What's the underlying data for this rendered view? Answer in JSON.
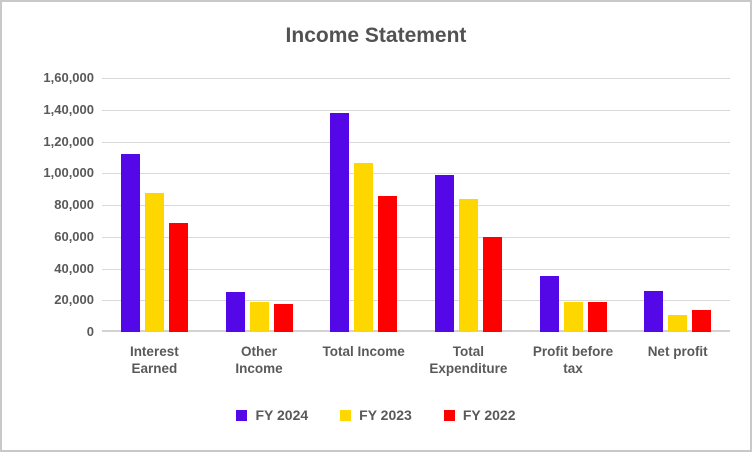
{
  "chart_data": {
    "type": "bar",
    "title": "Income Statement",
    "categories": [
      "Interest Earned",
      "Other Income",
      "Total Income",
      "Total Expenditure",
      "Profit before tax",
      "Net profit"
    ],
    "category_lines": [
      [
        "Interest",
        "Earned"
      ],
      [
        "Other",
        "Income"
      ],
      [
        "Total Income"
      ],
      [
        "Total",
        "Expenditure"
      ],
      [
        "Profit before",
        "tax"
      ],
      [
        "Net profit"
      ]
    ],
    "series": [
      {
        "name": "FY 2024",
        "color": "#5408e8",
        "values": [
          112000,
          25000,
          138000,
          99000,
          35000,
          26000
        ]
      },
      {
        "name": "FY 2023",
        "color": "#ffd700",
        "values": [
          87500,
          19000,
          106500,
          84000,
          19000,
          10500
        ]
      },
      {
        "name": "FY 2022",
        "color": "#ff0000",
        "values": [
          69000,
          17500,
          86000,
          60000,
          19000,
          14000
        ]
      }
    ],
    "ylim": [
      0,
      160000
    ],
    "ytick_interval": 20000,
    "ytick_labels_top_to_bottom": [
      "1,60,000",
      "1,40,000",
      "1,20,000",
      "1,00,000",
      "80,000",
      "60,000",
      "40,000",
      "20,000",
      "0"
    ],
    "xlabel": "",
    "ylabel": "",
    "grid": true,
    "legend_position": "bottom",
    "number_format": "indian"
  },
  "colors": {
    "title_text": "#525252",
    "axis_text": "#595959",
    "gridline": "#d9d9d9",
    "axis_line": "#d2d2d2",
    "frame_border": "#c8c8c8",
    "background": "#ffffff"
  }
}
